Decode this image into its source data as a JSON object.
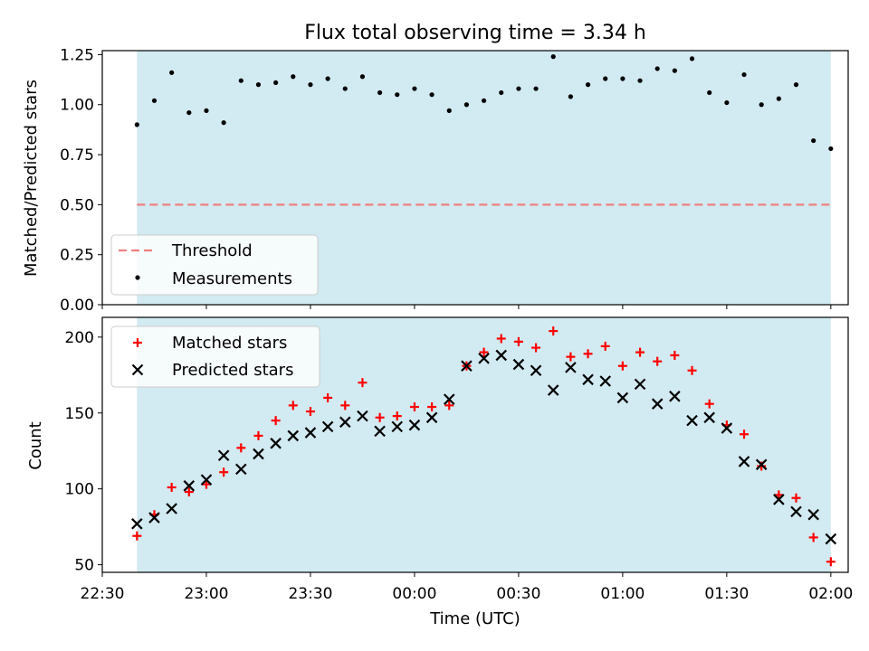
{
  "title": "Flux total observing time = 3.34 h",
  "colors": {
    "shade": "#add8e6",
    "threshold": "#f08080",
    "matched": "#ff0000",
    "predicted": "#000000",
    "measurements": "#000000"
  },
  "chart_data": [
    {
      "type": "scatter",
      "ylabel": "Matched/Predicted stars",
      "ylim": [
        0,
        1.27
      ],
      "yticks": [
        "0.00",
        "0.25",
        "0.50",
        "0.75",
        "1.00",
        "1.25"
      ],
      "xlim": [
        "22:30",
        "02:05"
      ],
      "observing_window": [
        "22:40",
        "02:00"
      ],
      "threshold": {
        "name": "Threshold",
        "value": 0.5,
        "style": "dashed"
      },
      "legend": {
        "placement": "lower-left",
        "entries": [
          "Threshold",
          "Measurements"
        ]
      },
      "series": [
        {
          "name": "Measurements",
          "x": [
            "22:40",
            "22:45",
            "22:50",
            "22:55",
            "23:00",
            "23:05",
            "23:10",
            "23:15",
            "23:20",
            "23:25",
            "23:30",
            "23:35",
            "23:40",
            "23:45",
            "23:50",
            "23:55",
            "00:00",
            "00:05",
            "00:10",
            "00:15",
            "00:20",
            "00:25",
            "00:30",
            "00:35",
            "00:40",
            "00:45",
            "00:50",
            "00:55",
            "01:00",
            "01:05",
            "01:10",
            "01:15",
            "01:20",
            "01:25",
            "01:30",
            "01:35",
            "01:40",
            "01:45",
            "01:50",
            "01:55",
            "02:00"
          ],
          "y": [
            0.9,
            1.02,
            1.16,
            0.96,
            0.97,
            0.91,
            1.12,
            1.1,
            1.11,
            1.14,
            1.1,
            1.13,
            1.08,
            1.14,
            1.06,
            1.05,
            1.08,
            1.05,
            0.97,
            1.0,
            1.02,
            1.06,
            1.08,
            1.08,
            1.24,
            1.04,
            1.1,
            1.13,
            1.13,
            1.12,
            1.18,
            1.17,
            1.23,
            1.06,
            1.01,
            1.15,
            1.0,
            1.03,
            1.1,
            0.82,
            0.78
          ]
        }
      ]
    },
    {
      "type": "scatter",
      "xlabel": "Time (UTC)",
      "ylabel": "Count",
      "ylim": [
        45,
        213
      ],
      "yticks": [
        "50",
        "100",
        "150",
        "200"
      ],
      "xlim": [
        "22:30",
        "02:05"
      ],
      "xticks": [
        "22:30",
        "23:00",
        "23:30",
        "00:00",
        "00:30",
        "01:00",
        "01:30",
        "02:00"
      ],
      "observing_window": [
        "22:40",
        "02:00"
      ],
      "legend": {
        "placement": "top-left",
        "entries": [
          "Matched stars",
          "Predicted stars"
        ]
      },
      "x": [
        "22:40",
        "22:45",
        "22:50",
        "22:55",
        "23:00",
        "23:05",
        "23:10",
        "23:15",
        "23:20",
        "23:25",
        "23:30",
        "23:35",
        "23:40",
        "23:45",
        "23:50",
        "23:55",
        "00:00",
        "00:05",
        "00:10",
        "00:15",
        "00:20",
        "00:25",
        "00:30",
        "00:35",
        "00:40",
        "00:45",
        "00:50",
        "00:55",
        "01:00",
        "01:05",
        "01:10",
        "01:15",
        "01:20",
        "01:25",
        "01:30",
        "01:35",
        "01:40",
        "01:45",
        "01:50",
        "01:55",
        "02:00"
      ],
      "series": [
        {
          "name": "Matched stars",
          "marker": "+",
          "values": [
            69,
            83,
            101,
            98,
            103,
            111,
            127,
            135,
            145,
            155,
            151,
            160,
            155,
            170,
            147,
            148,
            154,
            154,
            155,
            181,
            190,
            199,
            197,
            193,
            204,
            187,
            189,
            194,
            181,
            190,
            184,
            188,
            178,
            156,
            142,
            136,
            115,
            96,
            94,
            68,
            52
          ]
        },
        {
          "name": "Predicted stars",
          "marker": "x",
          "values": [
            77,
            81,
            87,
            102,
            106,
            122,
            113,
            123,
            130,
            135,
            137,
            141,
            144,
            148,
            138,
            141,
            142,
            147,
            159,
            181,
            186,
            188,
            182,
            178,
            165,
            180,
            172,
            171,
            160,
            169,
            156,
            161,
            145,
            147,
            140,
            118,
            116,
            93,
            85,
            83,
            67
          ]
        }
      ]
    }
  ]
}
